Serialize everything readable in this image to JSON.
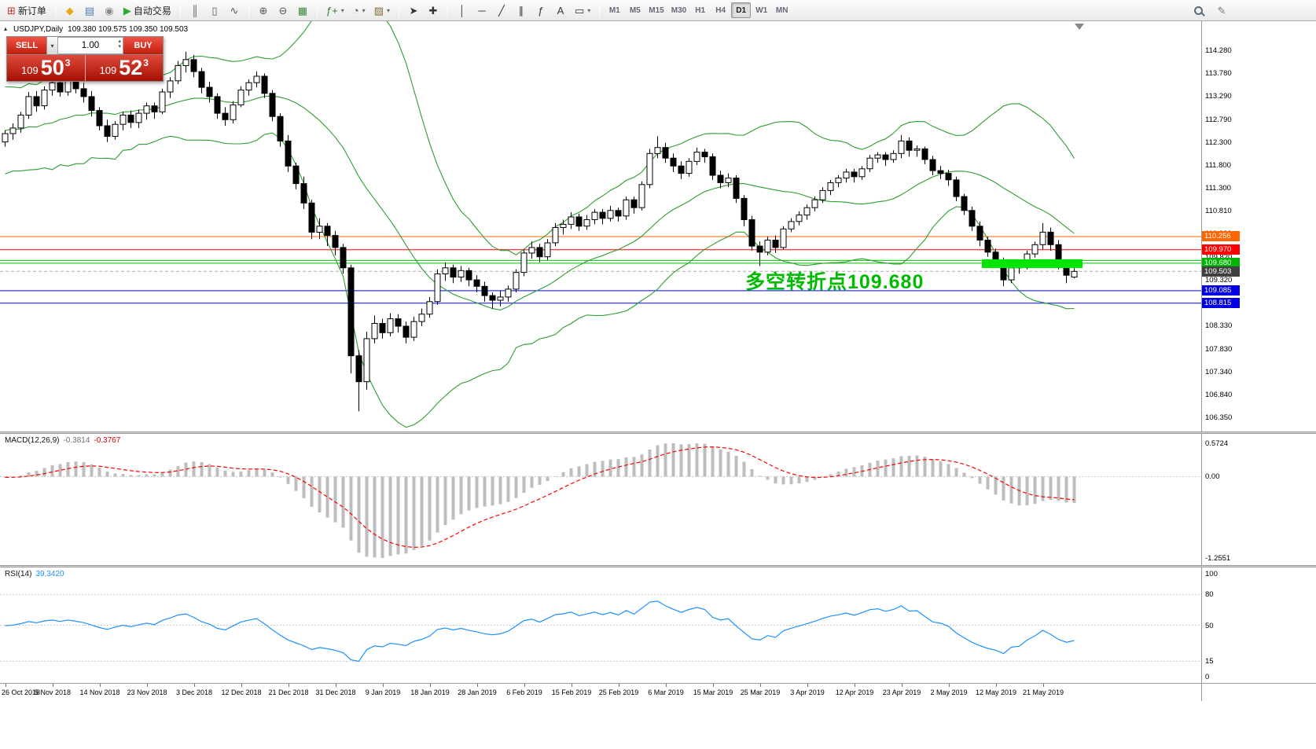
{
  "icons": {
    "dropdown": "▾",
    "spin_up": "▴",
    "spin_down": "▾",
    "collapse": "▴",
    "pencil": "✎"
  },
  "toolbar": {
    "buttons": [
      {
        "name": "new-order-button",
        "glyph": "⊞",
        "glyph_color": "#c0392b",
        "label": "新订单"
      },
      {
        "name": "metaeditor-button",
        "glyph": "◆",
        "glyph_color": "#e6a817",
        "group_start": true
      },
      {
        "name": "terminal-button",
        "glyph": "▤",
        "glyph_color": "#4a7ebb"
      },
      {
        "name": "signals-button",
        "glyph": "◉",
        "glyph_color": "#888888"
      },
      {
        "name": "autotrading-button",
        "glyph": "▶",
        "glyph_color": "#2eaa2e",
        "label": "自动交易"
      },
      {
        "name": "bar-chart-button",
        "glyph": "║",
        "glyph_color": "#555555",
        "group_start": true
      },
      {
        "name": "candlestick-button",
        "glyph": "▯",
        "glyph_color": "#555555"
      },
      {
        "name": "line-chart-button",
        "glyph": "∿",
        "glyph_color": "#555555"
      },
      {
        "name": "zoom-in-button",
        "glyph": "⊕",
        "glyph_color": "#555555",
        "group_start": true
      },
      {
        "name": "zoom-out-button",
        "glyph": "⊖",
        "glyph_color": "#555555"
      },
      {
        "name": "tile-windows-button",
        "glyph": "▦",
        "glyph_color": "#3c8a3c"
      },
      {
        "name": "indicators-button",
        "glyph": "ƒ+",
        "glyph_color": "#2e7d32",
        "dropdown": true,
        "group_start": true
      },
      {
        "name": "periods-button",
        "glyph": "◔",
        "glyph_color": "#555555",
        "dropdown": true
      },
      {
        "name": "templates-button",
        "glyph": "▨",
        "glyph_color": "#7d6a2e",
        "dropdown": true
      },
      {
        "name": "cursor-button",
        "glyph": "➤",
        "glyph_color": "#333333",
        "group_start": true
      },
      {
        "name": "crosshair-button",
        "glyph": "✚",
        "glyph_color": "#333333"
      },
      {
        "name": "vertical-line-button",
        "glyph": "│",
        "glyph_color": "#333333",
        "group_start": true
      },
      {
        "name": "horizontal-line-button",
        "glyph": "─",
        "glyph_color": "#333333"
      },
      {
        "name": "trendline-button",
        "glyph": "╱",
        "glyph_color": "#333333"
      },
      {
        "name": "channel-button",
        "glyph": "∥",
        "glyph_color": "#333333"
      },
      {
        "name": "fibonacci-button",
        "glyph": "ƒ",
        "glyph_color": "#333333"
      },
      {
        "name": "text-button",
        "glyph": "A",
        "glyph_color": "#333333"
      },
      {
        "name": "arrows-button",
        "glyph": "▭",
        "glyph_color": "#333333",
        "dropdown": true
      }
    ],
    "timeframes": [
      "M1",
      "M5",
      "M15",
      "M30",
      "H1",
      "H4",
      "D1",
      "W1",
      "MN"
    ],
    "active_timeframe": "D1"
  },
  "symbol": {
    "title": "USDJPY,Daily",
    "ohlc_text": "109.380 109.575 109.350 109.503"
  },
  "one_click": {
    "sell_label": "SELL",
    "buy_label": "BUY",
    "volume": "1.00",
    "sell_prefix": "109",
    "sell_big": "50",
    "sell_sup": "3",
    "buy_prefix": "109",
    "buy_big": "52",
    "buy_sup": "3"
  },
  "annotation": {
    "text": "多空转折点109.680",
    "color": "#00BB00"
  },
  "colors": {
    "candle_up": "#ffffff",
    "candle_down": "#000000",
    "candle_border": "#000000",
    "bollinger": "#2E9E2E",
    "macd_hist": "#BDBDBD",
    "macd_signal": "#FF0000",
    "rsi_line": "#1E90FF",
    "highlight": "#00E400"
  },
  "hlines": [
    {
      "price": 110.256,
      "color": "#FF6600"
    },
    {
      "price": 109.97,
      "color": "#FF0000"
    },
    {
      "price": 109.74,
      "color": "#00C000"
    },
    {
      "price": 109.68,
      "color": "#00C000"
    },
    {
      "price": 109.503,
      "color": "#aaaaaa",
      "dash": true
    },
    {
      "price": 109.085,
      "color": "#0000FF"
    },
    {
      "price": 108.815,
      "color": "#0000FF"
    }
  ],
  "highlight_rect": {
    "start_index": 124.6,
    "end_index": 137.4,
    "price_top": 109.765,
    "price_bottom": 109.575
  },
  "price_scale": {
    "ticks": [
      "114.280",
      "113.780",
      "113.290",
      "112.790",
      "112.300",
      "111.800",
      "111.300",
      "110.810",
      "110.330",
      "109.820",
      "109.320",
      "108.330",
      "107.830",
      "107.340",
      "106.840",
      "106.350"
    ],
    "badges": [
      {
        "text": "110.256",
        "price": 110.256,
        "bg": "#FF6600"
      },
      {
        "text": "109.970",
        "price": 109.97,
        "bg": "#FF0000"
      },
      {
        "text": "109.680",
        "price": 109.68,
        "bg": "#00B400"
      },
      {
        "text": "109.503",
        "price": 109.503,
        "bg": "#404040"
      },
      {
        "text": "109.085",
        "price": 109.085,
        "bg": "#0000E0"
      },
      {
        "text": "108.815",
        "price": 108.815,
        "bg": "#0000E0"
      }
    ]
  },
  "chart_data": {
    "type": "candlestick",
    "symbol": "USDJPY",
    "timeframe": "Daily",
    "ylim": [
      106.35,
      114.28
    ],
    "x_label_step": 6,
    "x_labels": [
      "26 Oct 2018",
      "5 Nov 2018",
      "14 Nov 2018",
      "23 Nov 2018",
      "3 Dec 2018",
      "12 Dec 2018",
      "21 Dec 2018",
      "31 Dec 2018",
      "9 Jan 2019",
      "18 Jan 2019",
      "28 Jan 2019",
      "6 Feb 2019",
      "15 Feb 2019",
      "25 Feb 2019",
      "6 Mar 2019",
      "15 Mar 2019",
      "25 Mar 2019",
      "3 Apr 2019",
      "12 Apr 2019",
      "23 Apr 2019",
      "2 May 2019",
      "12 May 2019",
      "21 May 2019"
    ],
    "candles": [
      [
        112.3,
        112.55,
        112.2,
        112.48
      ],
      [
        112.48,
        112.7,
        112.35,
        112.6
      ],
      [
        112.6,
        112.95,
        112.5,
        112.88
      ],
      [
        112.88,
        113.38,
        112.8,
        113.28
      ],
      [
        113.28,
        113.4,
        112.95,
        113.08
      ],
      [
        113.08,
        113.5,
        113.0,
        113.42
      ],
      [
        113.42,
        113.72,
        113.3,
        113.58
      ],
      [
        113.58,
        113.68,
        113.28,
        113.38
      ],
      [
        113.38,
        113.7,
        113.3,
        113.62
      ],
      [
        113.62,
        113.78,
        113.35,
        113.45
      ],
      [
        113.45,
        113.58,
        113.15,
        113.28
      ],
      [
        113.28,
        113.4,
        112.85,
        112.98
      ],
      [
        112.98,
        113.05,
        112.55,
        112.65
      ],
      [
        112.65,
        112.78,
        112.3,
        112.42
      ],
      [
        112.42,
        112.75,
        112.35,
        112.68
      ],
      [
        112.68,
        112.95,
        112.55,
        112.88
      ],
      [
        112.88,
        112.98,
        112.6,
        112.72
      ],
      [
        112.72,
        113.0,
        112.6,
        112.92
      ],
      [
        112.92,
        113.15,
        112.78,
        113.08
      ],
      [
        113.08,
        113.15,
        112.8,
        112.95
      ],
      [
        112.95,
        113.45,
        112.9,
        113.38
      ],
      [
        113.38,
        113.7,
        113.25,
        113.62
      ],
      [
        113.62,
        114.05,
        113.55,
        113.95
      ],
      [
        113.95,
        114.25,
        113.8,
        114.08
      ],
      [
        114.08,
        114.18,
        113.7,
        113.82
      ],
      [
        113.82,
        113.9,
        113.35,
        113.48
      ],
      [
        113.48,
        113.6,
        113.15,
        113.28
      ],
      [
        113.28,
        113.35,
        112.8,
        112.92
      ],
      [
        112.92,
        113.05,
        112.65,
        112.78
      ],
      [
        112.78,
        113.18,
        112.7,
        113.1
      ],
      [
        113.1,
        113.5,
        113.05,
        113.42
      ],
      [
        113.42,
        113.65,
        113.3,
        113.58
      ],
      [
        113.58,
        113.82,
        113.48,
        113.72
      ],
      [
        113.72,
        113.78,
        113.25,
        113.35
      ],
      [
        113.35,
        113.42,
        112.75,
        112.85
      ],
      [
        112.85,
        112.92,
        112.2,
        112.32
      ],
      [
        112.32,
        112.45,
        111.65,
        111.78
      ],
      [
        111.78,
        111.85,
        111.28,
        111.4
      ],
      [
        111.4,
        111.55,
        110.85,
        110.98
      ],
      [
        110.98,
        111.05,
        110.2,
        110.35
      ],
      [
        110.35,
        110.65,
        110.2,
        110.48
      ],
      [
        110.48,
        110.55,
        110.05,
        110.28
      ],
      [
        110.28,
        110.38,
        109.85,
        110.02
      ],
      [
        110.02,
        110.1,
        109.45,
        109.58
      ],
      [
        109.58,
        109.65,
        107.3,
        107.68
      ],
      [
        107.68,
        107.8,
        106.48,
        107.12
      ],
      [
        107.12,
        108.2,
        106.95,
        108.05
      ],
      [
        108.05,
        108.55,
        107.95,
        108.38
      ],
      [
        108.38,
        108.48,
        108.05,
        108.18
      ],
      [
        108.18,
        108.6,
        108.1,
        108.48
      ],
      [
        108.48,
        108.58,
        108.18,
        108.32
      ],
      [
        108.32,
        108.42,
        107.95,
        108.08
      ],
      [
        108.08,
        108.52,
        108.0,
        108.42
      ],
      [
        108.42,
        108.7,
        108.32,
        108.58
      ],
      [
        108.58,
        108.95,
        108.5,
        108.85
      ],
      [
        108.85,
        109.55,
        108.78,
        109.45
      ],
      [
        109.45,
        109.7,
        109.3,
        109.58
      ],
      [
        109.58,
        109.65,
        109.25,
        109.38
      ],
      [
        109.38,
        109.62,
        109.28,
        109.52
      ],
      [
        109.52,
        109.58,
        109.18,
        109.32
      ],
      [
        109.32,
        109.42,
        109.05,
        109.18
      ],
      [
        109.18,
        109.28,
        108.85,
        108.98
      ],
      [
        108.98,
        109.05,
        108.7,
        108.88
      ],
      [
        108.88,
        109.08,
        108.75,
        108.95
      ],
      [
        108.95,
        109.2,
        108.85,
        109.12
      ],
      [
        109.12,
        109.55,
        109.05,
        109.48
      ],
      [
        109.48,
        109.98,
        109.4,
        109.9
      ],
      [
        109.9,
        110.15,
        109.78,
        110.02
      ],
      [
        110.02,
        110.1,
        109.7,
        109.82
      ],
      [
        109.82,
        110.2,
        109.75,
        110.12
      ],
      [
        110.12,
        110.55,
        110.05,
        110.45
      ],
      [
        110.45,
        110.62,
        110.3,
        110.52
      ],
      [
        110.52,
        110.78,
        110.42,
        110.68
      ],
      [
        110.68,
        110.75,
        110.38,
        110.48
      ],
      [
        110.48,
        110.72,
        110.4,
        110.62
      ],
      [
        110.62,
        110.85,
        110.52,
        110.78
      ],
      [
        110.78,
        110.85,
        110.52,
        110.65
      ],
      [
        110.65,
        110.92,
        110.58,
        110.82
      ],
      [
        110.82,
        110.88,
        110.58,
        110.7
      ],
      [
        110.7,
        111.12,
        110.62,
        111.05
      ],
      [
        111.05,
        111.12,
        110.75,
        110.88
      ],
      [
        110.88,
        111.45,
        110.82,
        111.38
      ],
      [
        111.38,
        112.15,
        111.3,
        112.05
      ],
      [
        112.05,
        112.42,
        111.95,
        112.18
      ],
      [
        112.18,
        112.28,
        111.85,
        111.95
      ],
      [
        111.95,
        112.05,
        111.65,
        111.78
      ],
      [
        111.78,
        111.88,
        111.5,
        111.62
      ],
      [
        111.62,
        111.95,
        111.55,
        111.88
      ],
      [
        111.88,
        112.18,
        111.8,
        112.08
      ],
      [
        112.08,
        112.15,
        111.85,
        111.98
      ],
      [
        111.98,
        112.05,
        111.48,
        111.58
      ],
      [
        111.58,
        111.68,
        111.3,
        111.42
      ],
      [
        111.42,
        111.62,
        111.32,
        111.52
      ],
      [
        111.52,
        111.58,
        110.98,
        111.08
      ],
      [
        111.08,
        111.15,
        110.48,
        110.62
      ],
      [
        110.62,
        110.7,
        109.95,
        110.05
      ],
      [
        110.05,
        110.15,
        109.62,
        109.92
      ],
      [
        109.92,
        110.25,
        109.85,
        110.18
      ],
      [
        110.18,
        110.28,
        109.9,
        110.02
      ],
      [
        110.02,
        110.48,
        109.98,
        110.42
      ],
      [
        110.42,
        110.65,
        110.35,
        110.58
      ],
      [
        110.58,
        110.8,
        110.5,
        110.72
      ],
      [
        110.72,
        110.95,
        110.62,
        110.88
      ],
      [
        110.88,
        111.12,
        110.8,
        111.05
      ],
      [
        111.05,
        111.32,
        110.98,
        111.25
      ],
      [
        111.25,
        111.48,
        111.15,
        111.42
      ],
      [
        111.42,
        111.58,
        111.32,
        111.52
      ],
      [
        111.52,
        111.72,
        111.42,
        111.65
      ],
      [
        111.65,
        111.72,
        111.42,
        111.55
      ],
      [
        111.55,
        111.78,
        111.48,
        111.72
      ],
      [
        111.72,
        112.02,
        111.65,
        111.95
      ],
      [
        111.95,
        112.08,
        111.85,
        112.02
      ],
      [
        112.02,
        112.08,
        111.78,
        111.92
      ],
      [
        111.92,
        112.12,
        111.85,
        112.05
      ],
      [
        112.05,
        112.45,
        111.95,
        112.32
      ],
      [
        112.32,
        112.4,
        111.98,
        112.12
      ],
      [
        112.12,
        112.22,
        111.98,
        112.15
      ],
      [
        112.15,
        112.2,
        111.82,
        111.92
      ],
      [
        111.92,
        112.0,
        111.58,
        111.68
      ],
      [
        111.68,
        111.78,
        111.5,
        111.62
      ],
      [
        111.62,
        111.7,
        111.35,
        111.48
      ],
      [
        111.48,
        111.55,
        111.02,
        111.12
      ],
      [
        111.12,
        111.18,
        110.72,
        110.82
      ],
      [
        110.82,
        110.9,
        110.38,
        110.48
      ],
      [
        110.48,
        110.58,
        110.05,
        110.18
      ],
      [
        110.18,
        110.25,
        109.82,
        109.92
      ],
      [
        109.92,
        110.0,
        109.6,
        109.72
      ],
      [
        109.72,
        109.8,
        109.18,
        109.32
      ],
      [
        109.32,
        109.65,
        109.25,
        109.58
      ],
      [
        109.58,
        109.7,
        109.45,
        109.62
      ],
      [
        109.62,
        109.95,
        109.55,
        109.88
      ],
      [
        109.88,
        110.15,
        109.8,
        110.08
      ],
      [
        110.08,
        110.55,
        109.98,
        110.35
      ],
      [
        110.35,
        110.45,
        109.95,
        110.08
      ],
      [
        110.08,
        110.18,
        109.55,
        109.68
      ],
      [
        109.68,
        109.75,
        109.25,
        109.42
      ],
      [
        109.38,
        109.575,
        109.35,
        109.503
      ]
    ],
    "bollinger": {
      "period": 20,
      "deviation": 2,
      "lead_in": [
        112.6,
        112.0,
        113.0,
        112.2,
        113.2,
        112.1,
        113.1,
        111.9,
        112.9,
        112.3,
        113.3,
        112.0,
        112.8,
        112.4,
        113.2,
        111.8,
        112.6,
        112.2,
        113.0,
        112.5
      ]
    },
    "macd": {
      "label": "MACD(12,26,9)",
      "value_main": "-0.3814",
      "value_signal": "-0.3767",
      "fast": 12,
      "slow": 26,
      "signal": 9,
      "scale_labels": [
        "0.5724",
        "0.00",
        "-1.2551"
      ]
    },
    "rsi": {
      "label": "RSI(14)",
      "value": "39.3420",
      "period": 14,
      "levels": [
        80,
        50,
        15
      ],
      "scale_labels": [
        {
          "text": "100",
          "value": 100
        },
        {
          "text": "80",
          "value": 80
        },
        {
          "text": "50",
          "value": 50
        },
        {
          "text": "15",
          "value": 15
        },
        {
          "text": "0",
          "value": 0
        }
      ]
    }
  }
}
